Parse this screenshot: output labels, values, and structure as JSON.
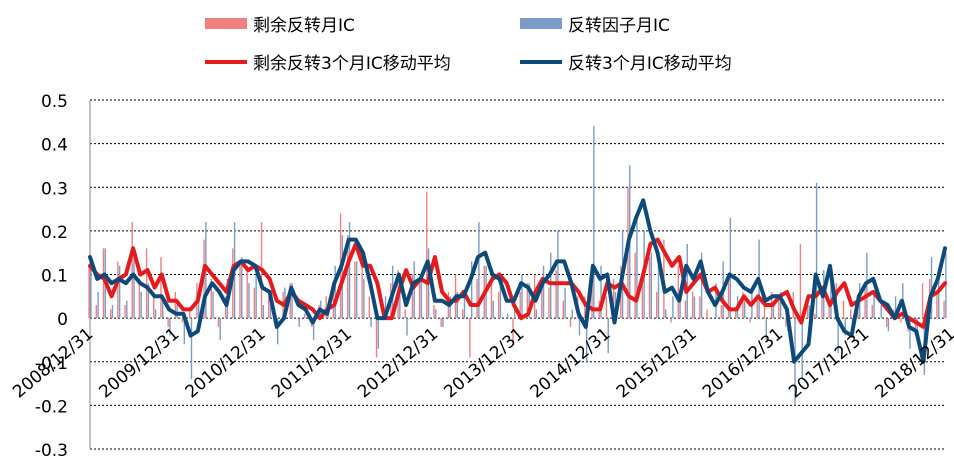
{
  "chart_data": {
    "type": "bar+line",
    "categories_sparse": [
      "2008/12/31",
      "2009/12/31",
      "2010/12/31",
      "2011/12/31",
      "2012/12/31",
      "2013/12/31",
      "2014/12/31",
      "2015/12/31",
      "2016/12/31",
      "2017/12/31",
      "2018/12/31"
    ],
    "ylim": [
      -0.3,
      0.5
    ],
    "yticks": [
      "0.5",
      "0.4",
      "0.3",
      "0.2",
      "0.1",
      "0",
      "-0.1",
      "-0.2",
      "-0.3"
    ],
    "yvals": [
      0.5,
      0.4,
      0.3,
      0.2,
      0.1,
      0,
      -0.1,
      -0.2,
      -0.3
    ],
    "legend": {
      "bar1": "剩余反转月IC",
      "bar2": "反转因子月IC",
      "line1": "剩余反转3个月IC移动平均",
      "line2": "反转3个月IC移动平均"
    },
    "colors": {
      "bar1": "#f08080",
      "bar2": "#7a9cc6",
      "line1": "#e41a1c",
      "line2": "#0d4a7a",
      "grid": "#000000"
    },
    "series": [
      {
        "name": "剩余反转3个月IC移动平均",
        "values": [
          0.12,
          0.1,
          0.09,
          0.05,
          0.09,
          0.1,
          0.16,
          0.1,
          0.11,
          0.07,
          0.1,
          0.04,
          0.04,
          0.02,
          0.02,
          0.04,
          0.12,
          0.1,
          0.08,
          0.06,
          0.12,
          0.13,
          0.11,
          0.12,
          0.11,
          0.09,
          0.04,
          0.03,
          0.06,
          0.04,
          0.03,
          0.02,
          0,
          0.02,
          0.03,
          0.08,
          0.13,
          0.17,
          0.12,
          0.12,
          0.08,
          0,
          0,
          0.06,
          0.11,
          0.07,
          0.09,
          0.08,
          0.14,
          0.06,
          0.04,
          0.04,
          0.06,
          0.03,
          0.03,
          0.06,
          0.09,
          0.1,
          0.08,
          0.03,
          0,
          0.01,
          0.06,
          0.09,
          0.08,
          0.08,
          0.08,
          0.08,
          0.06,
          0.03,
          0.02,
          0.02,
          0.08,
          0.07,
          0.08,
          0.05,
          0.04,
          0.1,
          0.17,
          0.18,
          0.15,
          0.12,
          0.14,
          0.06,
          0.08,
          0.1,
          0.06,
          0.07,
          0.04,
          0.02,
          0.02,
          0.05,
          0.03,
          0.05,
          0.03,
          0.03,
          0.05,
          0.06,
          0.02,
          -0.01,
          0.05,
          0.05,
          0.07,
          0.03,
          0.06,
          0.08,
          0.03,
          0.04,
          0.05,
          0.06,
          0.04,
          0.02,
          0,
          0.01,
          0,
          -0.01,
          -0.02,
          0.05,
          0.06,
          0.08
        ]
      },
      {
        "name": "反转3个月IC移动平均",
        "values": [
          0.14,
          0.09,
          0.1,
          0.08,
          0.09,
          0.08,
          0.1,
          0.08,
          0.07,
          0.05,
          0.05,
          0.02,
          0.01,
          0.01,
          -0.04,
          -0.03,
          0.05,
          0.08,
          0.06,
          0.03,
          0.11,
          0.13,
          0.13,
          0.12,
          0.07,
          0.06,
          -0.02,
          0,
          0.07,
          0.03,
          0.02,
          -0.01,
          0.02,
          0.01,
          0.08,
          0.12,
          0.18,
          0.18,
          0.15,
          0.08,
          0,
          0,
          0.05,
          0.1,
          0.03,
          0.08,
          0.09,
          0.13,
          0.04,
          0.04,
          0.03,
          0.05,
          0.05,
          0.09,
          0.14,
          0.15,
          0.1,
          0.09,
          0.04,
          0.04,
          0.08,
          0.07,
          0.04,
          0.08,
          0.1,
          0.13,
          0.13,
          0.08,
          0.01,
          -0.02,
          0.12,
          0.09,
          0.1,
          -0.01,
          0.09,
          0.18,
          0.23,
          0.27,
          0.2,
          0.15,
          0.06,
          0.07,
          0.04,
          0.12,
          0.09,
          0.13,
          0.06,
          0.03,
          0.06,
          0.1,
          0.09,
          0.07,
          0.06,
          0.09,
          0.04,
          0.05,
          0.05,
          0.02,
          -0.1,
          -0.08,
          -0.06,
          0.1,
          0.05,
          0.12,
          0,
          -0.03,
          -0.04,
          0.05,
          0.08,
          0.09,
          0.04,
          0.03,
          0,
          0.04,
          -0.02,
          -0.03,
          -0.1,
          0.05,
          0.09,
          0.16
        ]
      },
      {
        "name": "剩余反转月IC",
        "values": [
          0.12,
          0.03,
          0.16,
          0.02,
          0.13,
          0.03,
          0.22,
          0.09,
          0.16,
          0.05,
          0.14,
          -0.02,
          0.06,
          -0.01,
          0.02,
          0.08,
          0.18,
          0.09,
          -0.02,
          0.05,
          0.16,
          0.13,
          0.12,
          0.07,
          0.22,
          0.05,
          -0.01,
          0.06,
          0.08,
          0,
          0.01,
          -0.02,
          0.03,
          0.05,
          0.08,
          0.24,
          0.19,
          0.13,
          0.12,
          0.05,
          -0.09,
          0.02,
          0.08,
          0.11,
          0.02,
          0.1,
          0.09,
          0.29,
          0.03,
          -0.02,
          0.06,
          0.1,
          0.02,
          -0.09,
          0.09,
          0.12,
          0.1,
          0.06,
          0,
          -0.06,
          0.06,
          0.08,
          0.1,
          0.09,
          0.07,
          0.11,
          0.04,
          -0.02,
          0.05,
          0.05,
          0.1,
          0.04,
          0.05,
          0.09,
          0.12,
          0.3,
          0.15,
          0.09,
          0.14,
          0.06,
          0.18,
          -0.01,
          0.12,
          0.04,
          0.06,
          0.05,
          0.02,
          0,
          0.03,
          0.09,
          0.02,
          0.06,
          -0.01,
          0.04,
          0.03,
          0.06,
          0.04,
          -0.02,
          0.06,
          0.17,
          0.05,
          0.01,
          0.06,
          0.03,
          0.08,
          0.04,
          0.02,
          0.04,
          0.08,
          0.03,
          0,
          -0.02,
          0.02,
          -0.01,
          -0.03,
          -0.04,
          0.08,
          0.09,
          0.06,
          0.04
        ]
      },
      {
        "name": "反转因子月IC",
        "values": [
          0.13,
          0.06,
          0.16,
          0.03,
          0.12,
          0.04,
          0.14,
          0.06,
          0.08,
          0.02,
          0.05,
          -0.04,
          0.03,
          -0.06,
          -0.14,
          0.05,
          0.22,
          0.06,
          -0.05,
          0.09,
          0.22,
          0.14,
          0.08,
          0.1,
          0.03,
          0.06,
          -0.06,
          0.07,
          0.08,
          -0.02,
          0,
          -0.05,
          0.04,
          0.02,
          0.12,
          0.19,
          0.22,
          0.13,
          0.09,
          -0.02,
          -0.07,
          0.05,
          0.12,
          0.09,
          -0.04,
          0.13,
          0.1,
          0.16,
          0.02,
          -0.02,
          0.05,
          0.06,
          0.06,
          0.13,
          0.22,
          0.12,
          0.04,
          0.1,
          0.01,
          0.02,
          0.1,
          0.08,
          0.02,
          0.12,
          0.15,
          0.2,
          0.07,
          0.02,
          -0.04,
          -0.1,
          0.44,
          0.12,
          -0.08,
          0.06,
          0.2,
          0.35,
          0.24,
          0.2,
          0.15,
          0.14,
          0.02,
          0.05,
          0.06,
          0.17,
          0.05,
          0.15,
          0,
          0.08,
          0.13,
          0.23,
          0.05,
          0.04,
          0.07,
          0.18,
          -0.05,
          0.03,
          0.06,
          -0.03,
          -0.2,
          -0.14,
          0.03,
          0.31,
          0.11,
          0.12,
          -0.08,
          -0.04,
          -0.02,
          0.08,
          0.15,
          0.06,
          0.03,
          -0.03,
          0.05,
          0.08,
          -0.07,
          -0.05,
          -0.13,
          0.14,
          0.11,
          0.15
        ]
      }
    ]
  }
}
